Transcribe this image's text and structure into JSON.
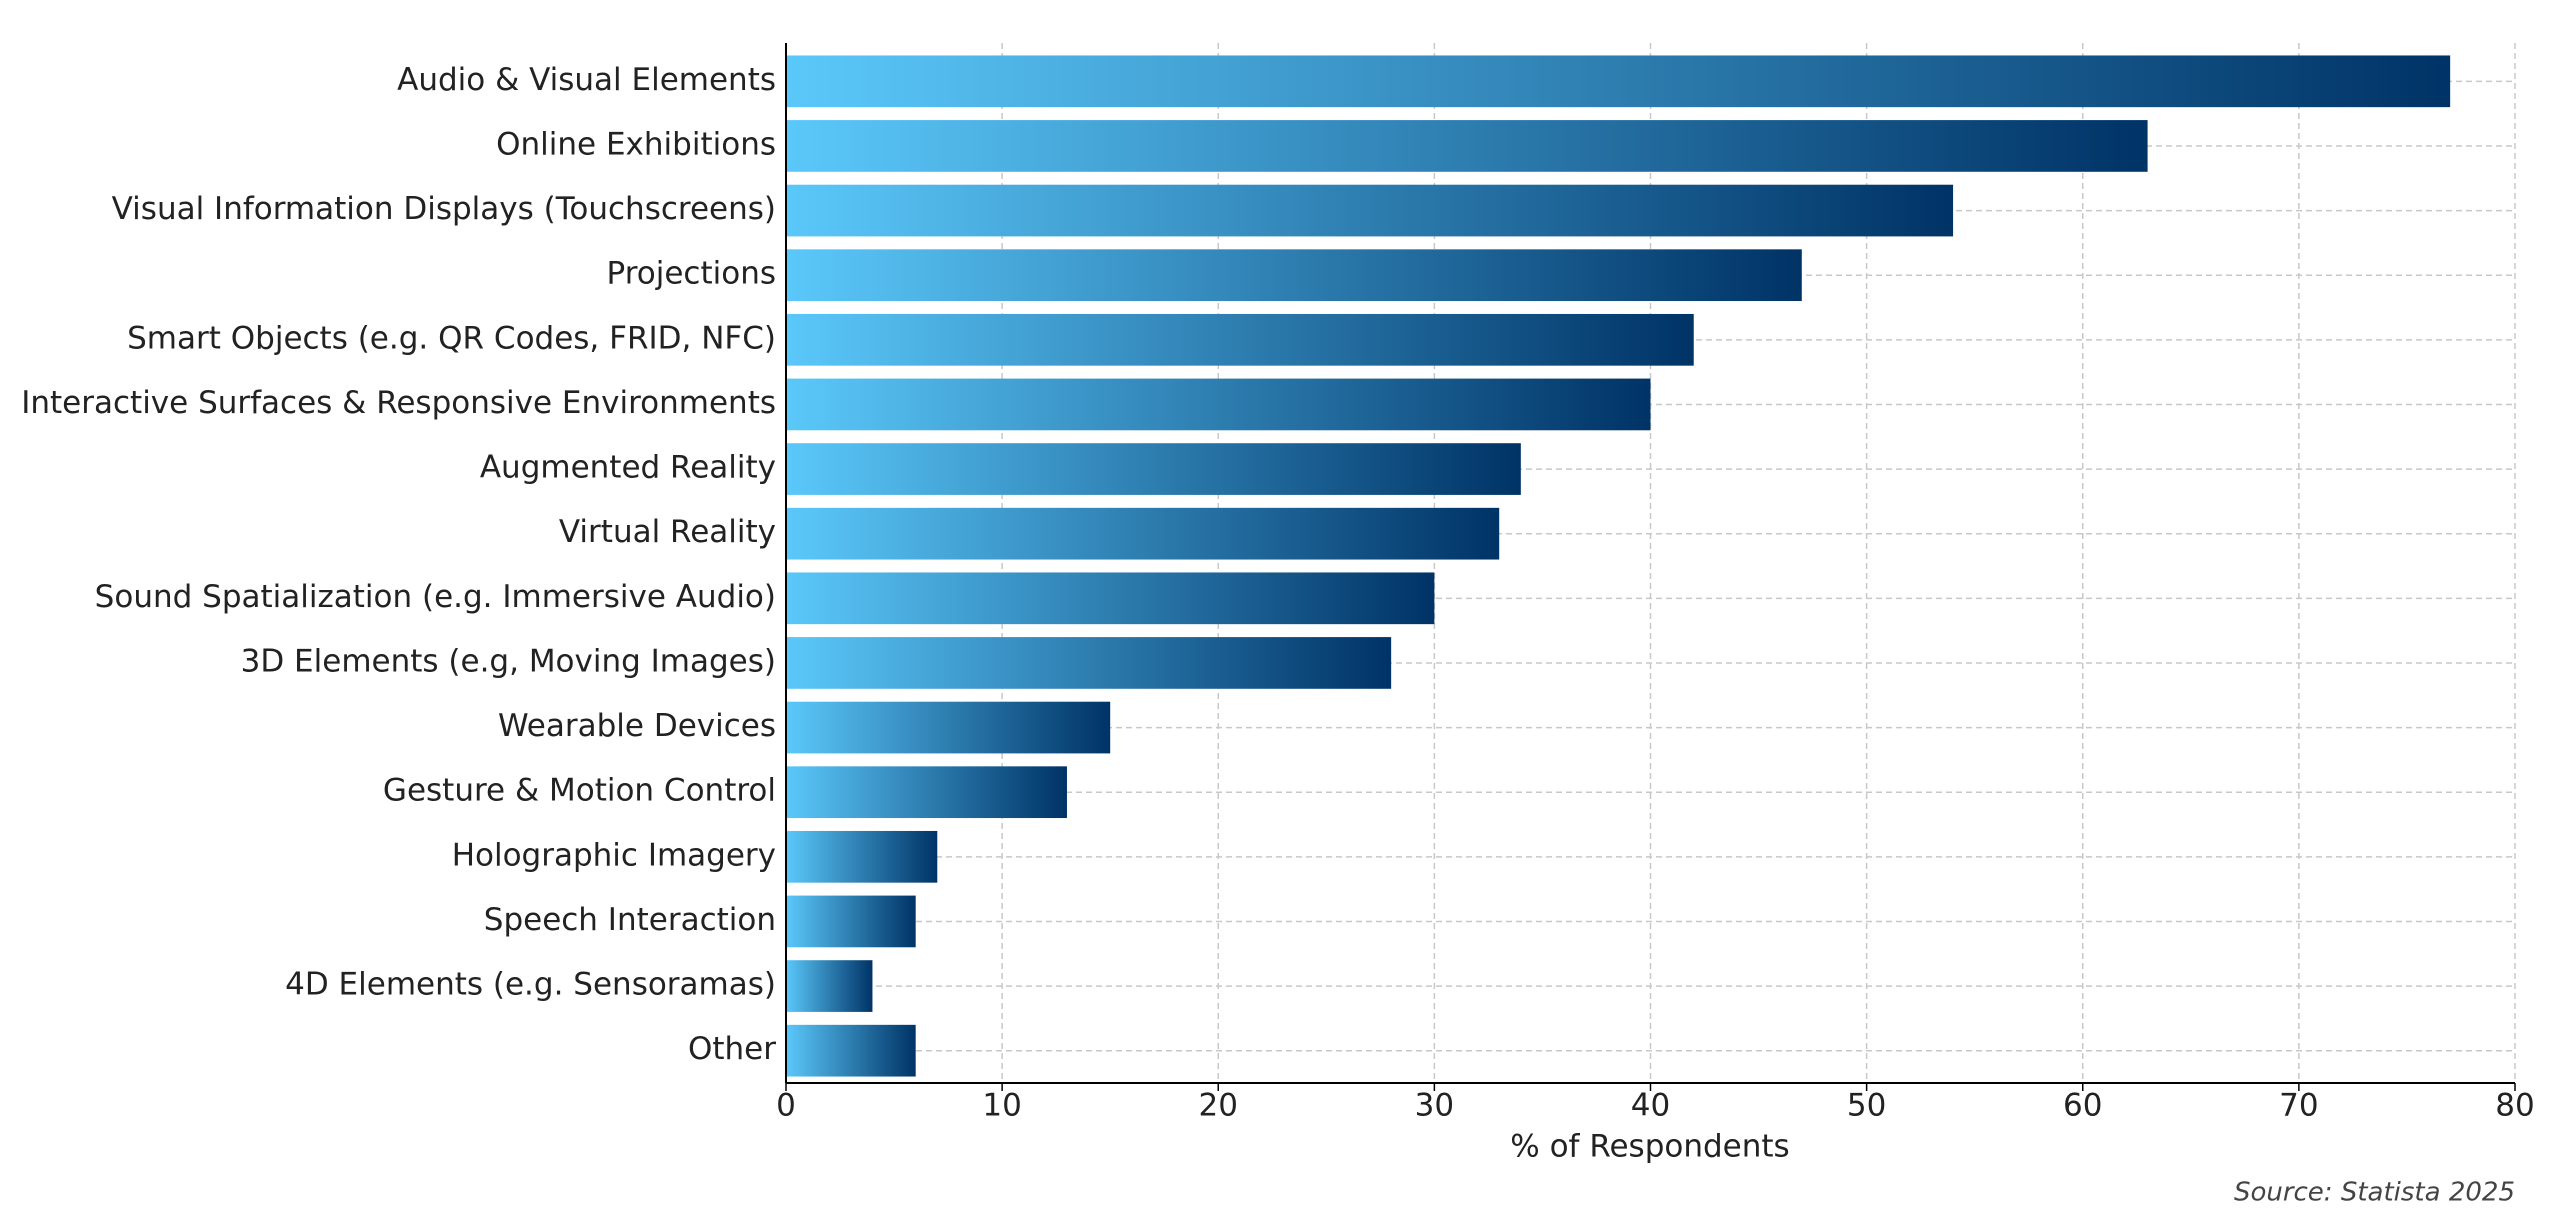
{
  "chart_data": {
    "type": "barh",
    "categories": [
      "Audio & Visual Elements",
      "Online Exhibitions",
      "Visual Information Displays (Touchscreens)",
      "Projections",
      "Smart Objects (e.g. QR Codes, FRID, NFC)",
      "Interactive Surfaces & Responsive Environments",
      "Augmented Reality",
      "Virtual Reality",
      "Sound Spatialization (e.g. Immersive Audio)",
      "3D Elements (e.g, Moving Images)",
      "Wearable Devices",
      "Gesture & Motion Control",
      "Holographic Imagery",
      "Speech Interaction",
      "4D Elements (e.g. Sensoramas)",
      "Other"
    ],
    "values": [
      77,
      63,
      54,
      47,
      42,
      40,
      34,
      33,
      30,
      28,
      15,
      13,
      7,
      6,
      4,
      6
    ],
    "color_start": "#5bc8fa",
    "color_end": "#003366",
    "xlim": [
      0,
      80
    ],
    "xticks": [
      0,
      10,
      20,
      30,
      40,
      50,
      60,
      70,
      80
    ],
    "x_label": "% of Respondents",
    "source": "Source: Statista 2025",
    "grid": true
  }
}
